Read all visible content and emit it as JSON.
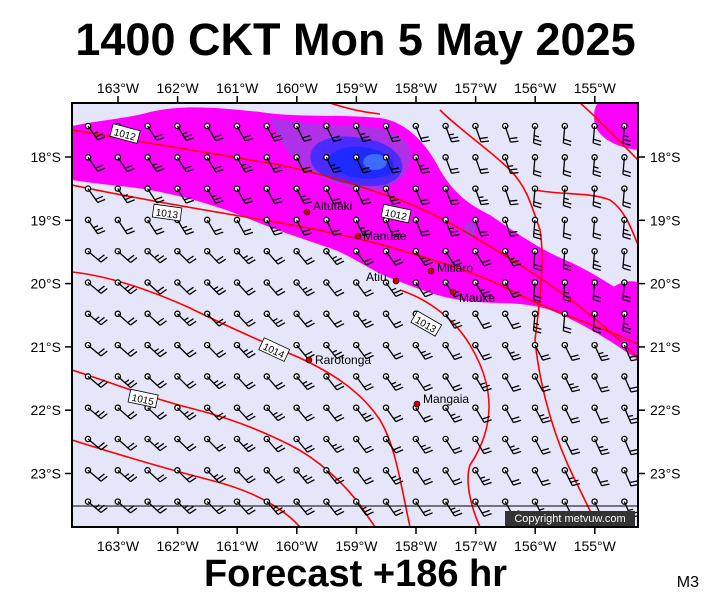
{
  "header": {
    "title": "1400 CKT Mon 5 May 2025"
  },
  "footer": {
    "forecast": "Forecast +186 hr",
    "code": "M3"
  },
  "map": {
    "copyright": "Copyright metvuw.com",
    "lon_labels": [
      "163°W",
      "162°W",
      "161°W",
      "160°W",
      "159°W",
      "158°W",
      "157°W",
      "156°W",
      "155°W"
    ],
    "lat_labels": [
      "18°S",
      "19°S",
      "20°S",
      "21°S",
      "22°S",
      "23°S"
    ],
    "isobar_labels": [
      "1012",
      "1013",
      "1012",
      "1013",
      "1014",
      "1015"
    ],
    "places": [
      {
        "name": "Aitutaki"
      },
      {
        "name": "Manuae"
      },
      {
        "name": "Mitiaro"
      },
      {
        "name": "Atiu"
      },
      {
        "name": "Mauke"
      },
      {
        "name": "Rarotonga"
      },
      {
        "name": "Mangaia"
      }
    ],
    "colors": {
      "background": "#e6e6fa",
      "rain_light": "#ff00ff",
      "rain_mid": "#8a2be2",
      "rain_heavy": "#1e2aff",
      "isobar": "#ff0000"
    }
  }
}
